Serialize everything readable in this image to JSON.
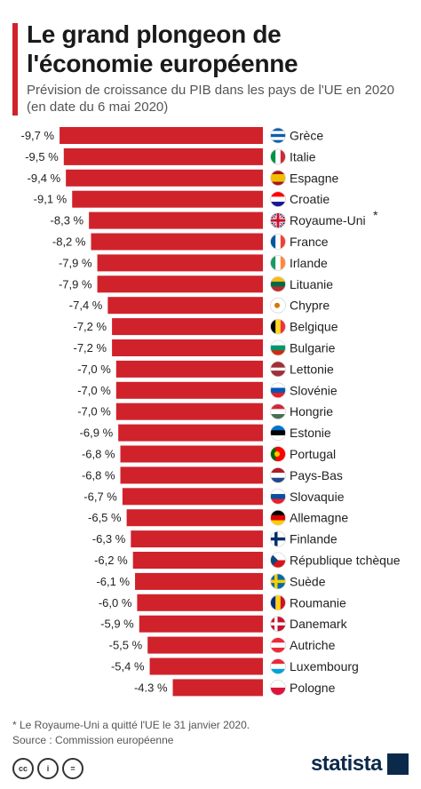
{
  "header": {
    "title": "Le grand plongeon de l'économie européenne",
    "subtitle": "Prévision de croissance du PIB dans les pays de l'UE en 2020 (en date du 6 mai 2020)"
  },
  "colors": {
    "bar": "#d0222b",
    "accent": "#d0222b",
    "brand": "#0b2a4a"
  },
  "chart_data": {
    "type": "bar",
    "orientation": "horizontal",
    "unit": "%",
    "title": "Le grand plongeon de l'économie européenne",
    "subtitle": "Prévision de croissance du PIB dans les pays de l'UE en 2020 (en date du 6 mai 2020)",
    "categories": [
      "Grèce",
      "Italie",
      "Espagne",
      "Croatie",
      "Royaume-Uni",
      "France",
      "Irlande",
      "Lituanie",
      "Chypre",
      "Belgique",
      "Bulgarie",
      "Lettonie",
      "Slovénie",
      "Hongrie",
      "Estonie",
      "Portugal",
      "Pays-Bas",
      "Slovaquie",
      "Allemagne",
      "Finlande",
      "République tchèque",
      "Suède",
      "Roumanie",
      "Danemark",
      "Autriche",
      "Luxembourg",
      "Pologne"
    ],
    "category_marks": [
      "",
      "",
      "",
      "",
      "*",
      "",
      "",
      "",
      "",
      "",
      "",
      "",
      "",
      "",
      "",
      "",
      "",
      "",
      "",
      "",
      "",
      "",
      "",
      "",
      "",
      "",
      ""
    ],
    "values": [
      -9.7,
      -9.5,
      -9.4,
      -9.1,
      -8.3,
      -8.2,
      -7.9,
      -7.9,
      -7.4,
      -7.2,
      -7.2,
      -7.0,
      -7.0,
      -7.0,
      -6.9,
      -6.8,
      -6.8,
      -6.7,
      -6.5,
      -6.3,
      -6.2,
      -6.1,
      -6.0,
      -5.9,
      -5.5,
      -5.4,
      -4.3
    ],
    "value_labels": [
      "-9,7 %",
      "-9,5 %",
      "-9,4 %",
      "-9,1 %",
      "-8,3 %",
      "-8,2 %",
      "-7,9 %",
      "-7,9 %",
      "-7,4 %",
      "-7,2 %",
      "-7,2 %",
      "-7,0 %",
      "-7,0 %",
      "-7,0 %",
      "-6,9 %",
      "-6,8 %",
      "-6,8 %",
      "-6,7 %",
      "-6,5 %",
      "-6,3 %",
      "-6,2 %",
      "-6,1 %",
      "-6,0 %",
      "-5,9 %",
      "-5,5 %",
      "-5,4 %",
      "-4.3 %"
    ],
    "flags": [
      "greece-flag-icon",
      "italy-flag-icon",
      "spain-flag-icon",
      "croatia-flag-icon",
      "uk-flag-icon",
      "france-flag-icon",
      "ireland-flag-icon",
      "lithuania-flag-icon",
      "cyprus-flag-icon",
      "belgium-flag-icon",
      "bulgaria-flag-icon",
      "latvia-flag-icon",
      "slovenia-flag-icon",
      "hungary-flag-icon",
      "estonia-flag-icon",
      "portugal-flag-icon",
      "netherlands-flag-icon",
      "slovakia-flag-icon",
      "germany-flag-icon",
      "finland-flag-icon",
      "czech-flag-icon",
      "sweden-flag-icon",
      "romania-flag-icon",
      "denmark-flag-icon",
      "austria-flag-icon",
      "luxembourg-flag-icon",
      "poland-flag-icon"
    ],
    "xlim": [
      -10,
      0
    ],
    "grid": false,
    "legend": "none"
  },
  "footer": {
    "note": "* Le Royaume-Uni a quitté l'UE le 31 janvier 2020.",
    "source": "Source : Commission européenne",
    "brand": "statista",
    "license_icons": [
      "cc-icon",
      "by-icon",
      "equals-icon"
    ],
    "license_labels": [
      "cc",
      "i",
      "="
    ]
  }
}
